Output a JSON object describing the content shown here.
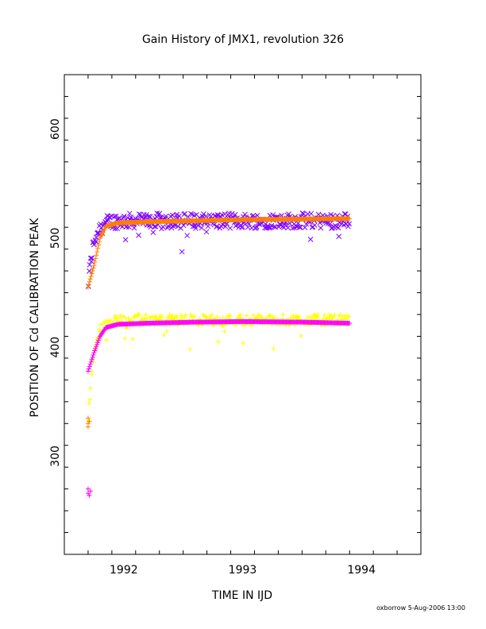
{
  "chart_data": {
    "type": "scatter",
    "title": "Gain History of JMX1, revolution 326",
    "xlabel": "TIME IN IJD",
    "ylabel": "POSITION OF Cd CALIBRATION PEAK",
    "xlim": [
      1991.5,
      1994.5
    ],
    "ylim": [
      210,
      650
    ],
    "x_ticks": [
      1992,
      1993,
      1994
    ],
    "y_ticks": [
      300,
      400,
      500,
      600
    ],
    "grid": false,
    "series": [
      {
        "marker": "x",
        "color": "#7f00ff",
        "base": 516,
        "spread": 7,
        "rise_from": 455
      },
      {
        "marker": "+",
        "color": "#ffff00",
        "base": 425,
        "spread": 5,
        "rise_from": 330
      },
      {
        "marker": "+",
        "color": "#ff7f00",
        "fit": true,
        "points": [
          [
            1991.7,
            455
          ],
          [
            1991.75,
            475
          ],
          [
            1991.8,
            500
          ],
          [
            1991.85,
            511
          ],
          [
            1991.95,
            514
          ],
          [
            1992.2,
            515
          ],
          [
            1992.6,
            516
          ],
          [
            1993.0,
            517
          ],
          [
            1993.5,
            517.5
          ],
          [
            1993.9,
            518
          ]
        ]
      },
      {
        "marker": "+",
        "color": "#ff00ff",
        "fit": true,
        "points": [
          [
            1991.7,
            378
          ],
          [
            1991.75,
            395
          ],
          [
            1991.8,
            410
          ],
          [
            1991.85,
            418
          ],
          [
            1991.95,
            421
          ],
          [
            1992.2,
            422
          ],
          [
            1992.6,
            423
          ],
          [
            1993.0,
            423.5
          ],
          [
            1993.5,
            423
          ],
          [
            1993.9,
            422
          ]
        ]
      },
      {
        "marker": "+",
        "color": "#ff7f00",
        "outliers": true,
        "points": [
          [
            1991.7,
            335
          ],
          [
            1991.7,
            330
          ],
          [
            1991.7,
            327
          ],
          [
            1991.71,
            332
          ]
        ]
      },
      {
        "marker": "+",
        "color": "#ff00ff",
        "outliers": true,
        "points": [
          [
            1991.7,
            270
          ],
          [
            1991.7,
            266
          ],
          [
            1991.71,
            264
          ],
          [
            1991.72,
            268
          ]
        ]
      }
    ]
  },
  "footer": {
    "credit": "oxborrow  5-Aug-2006 13:00"
  }
}
